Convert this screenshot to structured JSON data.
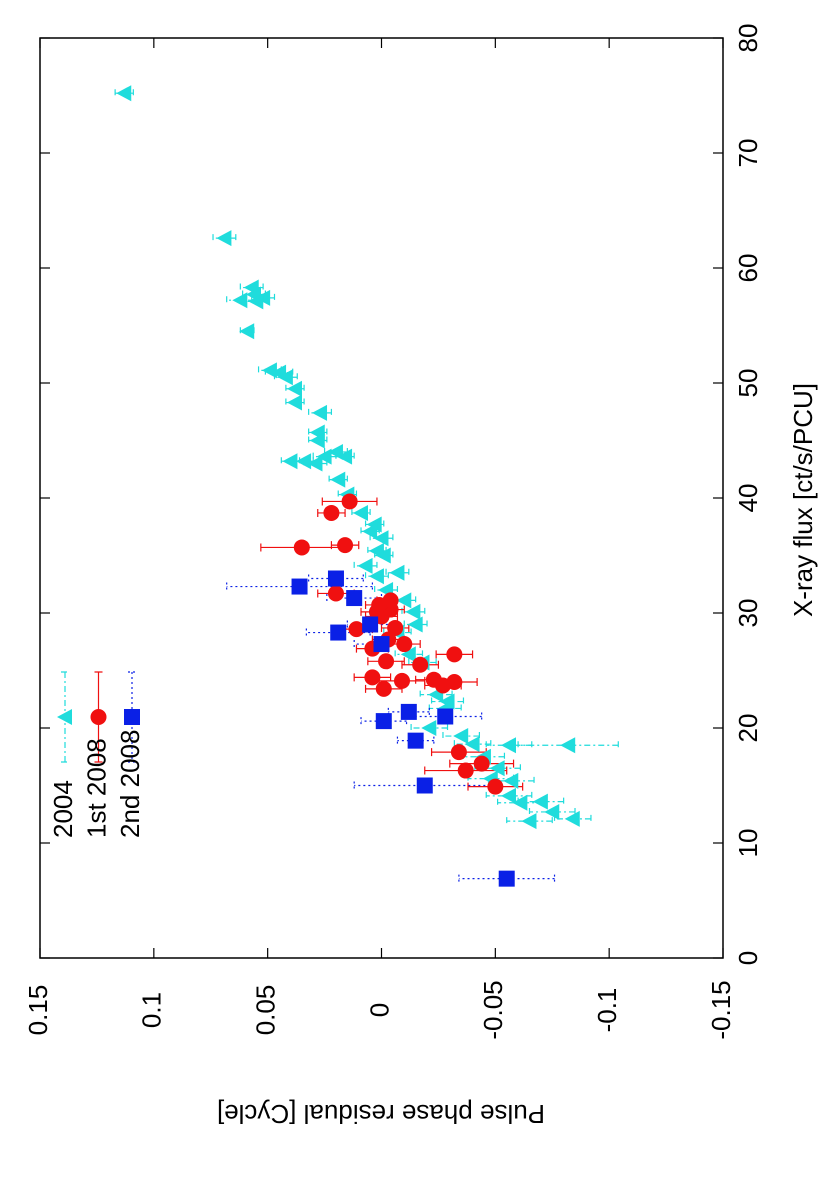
{
  "chart_data": {
    "type": "scatter",
    "xlabel": "X-ray flux [ct/s/PCU]",
    "ylabel": "Pulse phase residual  [Cycle]",
    "xlim": [
      0,
      80
    ],
    "xticks": [
      0,
      10,
      20,
      30,
      40,
      50,
      60,
      70,
      80
    ],
    "ylim": [
      0.15,
      -0.15
    ],
    "yticks": [
      0.15,
      0.1,
      0.05,
      0,
      -0.05,
      -0.1,
      -0.15
    ],
    "legend": "upper left",
    "series": [
      {
        "name": "2004",
        "color": "#1fdcdc",
        "marker": "triangle",
        "linestyle": "dashdot",
        "x": [
          75.2,
          62.6,
          58.3,
          57.7,
          57.4,
          57.2,
          57.1,
          54.5,
          51.1,
          50.9,
          50.5,
          49.5,
          48.3,
          47.4,
          45.7,
          45.0,
          44.0,
          43.6,
          43.0,
          43.6,
          43.2,
          43.2,
          41.6,
          40.3,
          38.7,
          37.7,
          37.1,
          36.5,
          35.4,
          34.1,
          35.0,
          33.2,
          33.5,
          32.0,
          31.1,
          30.1,
          29.0,
          28.3,
          26.4,
          25.7,
          22.9,
          22.3,
          21.7,
          20.0,
          19.3,
          18.6,
          18.5,
          18.5,
          17.5,
          16.5,
          15.4,
          15.6,
          14.1,
          13.5,
          13.6,
          12.7,
          11.9,
          12.1
        ],
        "values": [
          0.113,
          0.069,
          0.057,
          0.056,
          0.052,
          0.062,
          0.055,
          0.059,
          0.049,
          0.045,
          0.042,
          0.038,
          0.038,
          0.027,
          0.028,
          0.028,
          0.02,
          0.025,
          0.029,
          0.016,
          0.04,
          0.034,
          0.019,
          0.015,
          0.009,
          0.003,
          0.005,
          0.0,
          0.002,
          0.007,
          -0.001,
          0.002,
          -0.007,
          -0.002,
          -0.01,
          -0.014,
          -0.015,
          -0.007,
          -0.012,
          -0.018,
          -0.024,
          -0.029,
          -0.028,
          -0.021,
          -0.035,
          -0.04,
          -0.056,
          -0.082,
          -0.045,
          -0.051,
          -0.057,
          -0.048,
          -0.056,
          -0.061,
          -0.07,
          -0.075,
          -0.065,
          -0.084
        ],
        "errors": [
          0.004,
          0.005,
          0.005,
          0.005,
          0.005,
          0.006,
          0.005,
          0.003,
          0.005,
          0.006,
          0.005,
          0.004,
          0.004,
          0.005,
          0.004,
          0.004,
          0.005,
          0.005,
          0.005,
          0.004,
          0.004,
          0.004,
          0.004,
          0.004,
          0.004,
          0.004,
          0.004,
          0.005,
          0.004,
          0.005,
          0.004,
          0.005,
          0.005,
          0.005,
          0.005,
          0.005,
          0.005,
          0.006,
          0.006,
          0.006,
          0.007,
          0.007,
          0.007,
          0.008,
          0.008,
          0.008,
          0.01,
          0.022,
          0.009,
          0.01,
          0.01,
          0.01,
          0.01,
          0.01,
          0.01,
          0.01,
          0.01,
          0.008
        ]
      },
      {
        "name": "1st 2008",
        "color": "#f01010",
        "marker": "circle",
        "linestyle": "solid",
        "x": [
          14.9,
          16.3,
          16.9,
          17.9,
          24.0,
          23.7,
          24.2,
          24.1,
          23.4,
          25.5,
          26.4,
          24.4,
          25.8,
          26.9,
          27.7,
          27.3,
          28.7,
          28.6,
          29.7,
          30.1,
          30.3,
          30.7,
          31.1,
          31.7,
          35.7,
          35.9,
          38.7,
          39.7
        ],
        "values": [
          -0.05,
          -0.037,
          -0.044,
          -0.034,
          -0.032,
          -0.027,
          -0.023,
          -0.009,
          -0.001,
          -0.017,
          -0.032,
          0.004,
          -0.002,
          0.004,
          -0.003,
          -0.01,
          -0.006,
          0.011,
          0.0,
          0.002,
          -0.004,
          0.001,
          -0.004,
          0.02,
          0.035,
          0.016,
          0.022,
          0.014
        ],
        "errors": [
          0.012,
          0.018,
          0.014,
          0.012,
          0.01,
          0.008,
          0.008,
          0.01,
          0.008,
          0.008,
          0.008,
          0.008,
          0.008,
          0.007,
          0.007,
          0.007,
          0.006,
          0.007,
          0.007,
          0.007,
          0.006,
          0.006,
          0.006,
          0.008,
          0.018,
          0.006,
          0.006,
          0.012
        ]
      },
      {
        "name": "2nd 2008",
        "color": "#0a20e6",
        "marker": "square",
        "linestyle": "dotted",
        "x": [
          6.9,
          15.0,
          18.9,
          21.0,
          21.4,
          20.6,
          27.3,
          29.0,
          28.3,
          31.3,
          33.0,
          32.3
        ],
        "values": [
          -0.055,
          -0.019,
          -0.015,
          -0.028,
          -0.012,
          -0.001,
          0.0,
          0.005,
          0.019,
          0.012,
          0.02,
          0.036
        ],
        "errors": [
          0.021,
          0.031,
          0.008,
          0.016,
          0.009,
          0.01,
          0.012,
          0.01,
          0.014,
          0.012,
          0.012,
          0.032
        ]
      }
    ]
  }
}
